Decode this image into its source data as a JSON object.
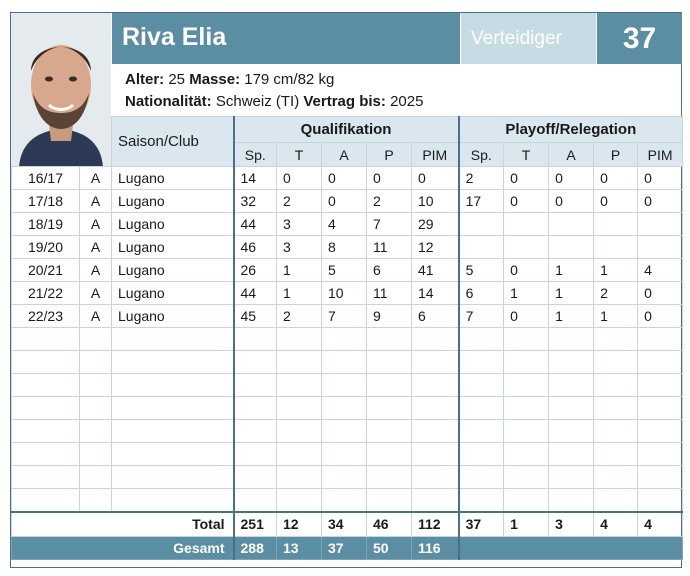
{
  "player": {
    "name": "Riva Elia",
    "position": "Verteidiger",
    "number": "37",
    "age_label": "Alter:",
    "age": "25",
    "size_label": "Masse:",
    "size": "179 cm/82 kg",
    "nationality_label": "Nationalität:",
    "nationality": "Schweiz (TI)",
    "contract_label": "Vertrag bis:",
    "contract": "2025"
  },
  "table": {
    "club_header": "Saison/Club",
    "qual_header": "Qualifikation",
    "playoff_header": "Playoff/Relegation",
    "sub_headers": [
      "Sp.",
      "T",
      "A",
      "P",
      "PIM"
    ],
    "rows": [
      {
        "season": "16/17",
        "league": "A",
        "club": "Lugano",
        "q": [
          "14",
          "0",
          "0",
          "0",
          "0"
        ],
        "p": [
          "2",
          "0",
          "0",
          "0",
          "0"
        ]
      },
      {
        "season": "17/18",
        "league": "A",
        "club": "Lugano",
        "q": [
          "32",
          "2",
          "0",
          "2",
          "10"
        ],
        "p": [
          "17",
          "0",
          "0",
          "0",
          "0"
        ]
      },
      {
        "season": "18/19",
        "league": "A",
        "club": "Lugano",
        "q": [
          "44",
          "3",
          "4",
          "7",
          "29"
        ],
        "p": [
          "",
          "",
          "",
          "",
          ""
        ]
      },
      {
        "season": "19/20",
        "league": "A",
        "club": "Lugano",
        "q": [
          "46",
          "3",
          "8",
          "11",
          "12"
        ],
        "p": [
          "",
          "",
          "",
          "",
          ""
        ]
      },
      {
        "season": "20/21",
        "league": "A",
        "club": "Lugano",
        "q": [
          "26",
          "1",
          "5",
          "6",
          "41"
        ],
        "p": [
          "5",
          "0",
          "1",
          "1",
          "4"
        ]
      },
      {
        "season": "21/22",
        "league": "A",
        "club": "Lugano",
        "q": [
          "44",
          "1",
          "10",
          "11",
          "14"
        ],
        "p": [
          "6",
          "1",
          "1",
          "2",
          "0"
        ]
      },
      {
        "season": "22/23",
        "league": "A",
        "club": "Lugano",
        "q": [
          "45",
          "2",
          "7",
          "9",
          "6"
        ],
        "p": [
          "7",
          "0",
          "1",
          "1",
          "0"
        ]
      }
    ],
    "empty_rows": 8,
    "total_label": "Total",
    "total_q": [
      "251",
      "12",
      "34",
      "46",
      "112"
    ],
    "total_p": [
      "37",
      "1",
      "3",
      "4",
      "4"
    ],
    "gesamt_label": "Gesamt",
    "gesamt": [
      "288",
      "13",
      "37",
      "50",
      "116"
    ]
  }
}
